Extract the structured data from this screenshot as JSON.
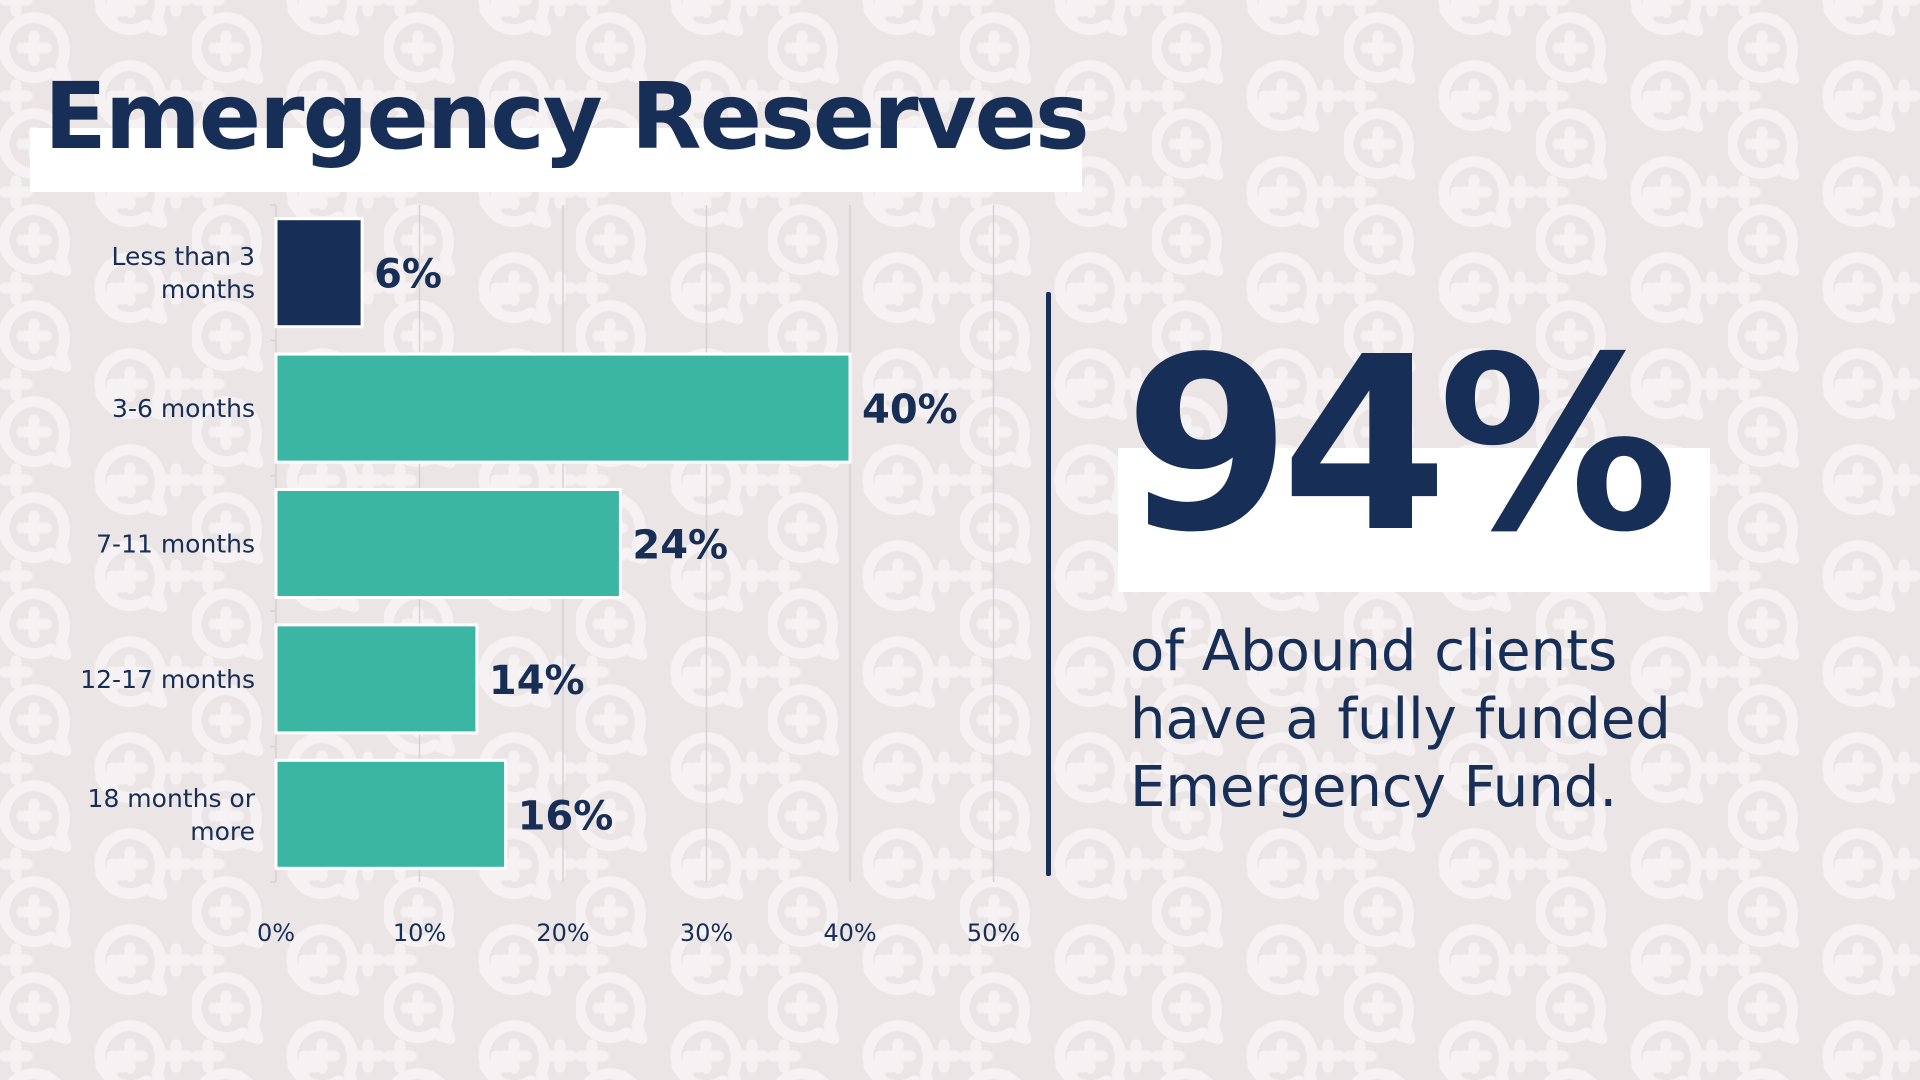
{
  "page": {
    "title": "Emergency Reserves",
    "background_color": "#ece5e6",
    "pattern_icon": "speech-bubble-plus-icon"
  },
  "stat": {
    "value": "94%",
    "caption": "of Abound clients have a fully funded Emergency Fund."
  },
  "colors": {
    "navy": "#172f56",
    "teal": "#3ab6a2",
    "grid": "#d6d2d4"
  },
  "chart_data": {
    "type": "bar",
    "orientation": "horizontal",
    "title": "",
    "xlabel": "",
    "ylabel": "",
    "categories": [
      [
        "Less than 3",
        "months"
      ],
      [
        "3-6 months"
      ],
      [
        "7-11 months"
      ],
      [
        "12-17 months"
      ],
      [
        "18 months or",
        "more"
      ]
    ],
    "values": [
      6,
      40,
      24,
      14,
      16
    ],
    "data_labels": [
      "6%",
      "40%",
      "24%",
      "14%",
      "16%"
    ],
    "bar_colors": [
      "#172f56",
      "#3ab6a2",
      "#3ab6a2",
      "#3ab6a2",
      "#3ab6a2"
    ],
    "xlim": [
      0,
      50
    ],
    "xticks": [
      0,
      10,
      20,
      30,
      40,
      50
    ],
    "xtick_labels": [
      "0%",
      "10%",
      "20%",
      "30%",
      "40%",
      "50%"
    ],
    "grid": true,
    "legend": "none"
  }
}
